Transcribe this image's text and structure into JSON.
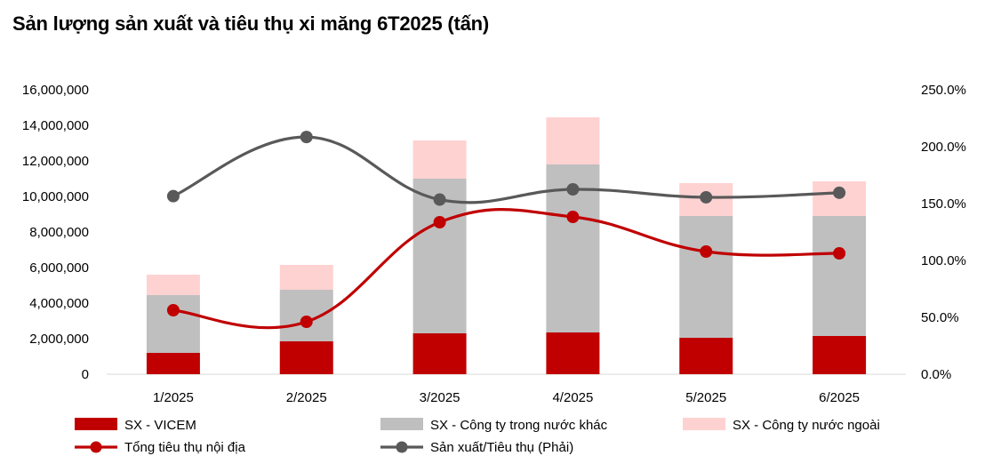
{
  "title": "Sản lượng sản xuất và tiêu thụ xi măng 6T2025 (tấn)",
  "chart_data": {
    "type": "bar",
    "title": "Sản lượng sản xuất và tiêu thụ xi măng 6T2025 (tấn)",
    "categories": [
      "1/2025",
      "2/2025",
      "3/2025",
      "4/2025",
      "5/2025",
      "6/2025"
    ],
    "y_left": {
      "range": [
        0,
        16000000
      ],
      "ticks": [
        "0",
        "2,000,000",
        "4,000,000",
        "6,000,000",
        "8,000,000",
        "10,000,000",
        "12,000,000",
        "14,000,000",
        "16,000,000"
      ]
    },
    "y_right": {
      "range": [
        0,
        250
      ],
      "ticks": [
        "0.0%",
        "50.0%",
        "100.0%",
        "150.0%",
        "200.0%",
        "250.0%"
      ]
    },
    "stacked_bars": [
      {
        "name": "SX - VICEM",
        "color": "#c00000",
        "values": [
          1200000,
          1850000,
          2300000,
          2350000,
          2050000,
          2150000
        ]
      },
      {
        "name": "SX - Công ty trong nước khác",
        "color": "#bfbfbf",
        "values": [
          3250000,
          2900000,
          8700000,
          9450000,
          6850000,
          6750000
        ]
      },
      {
        "name": "SX - Công ty nước ngoài",
        "color": "#ffd2d2",
        "values": [
          1150000,
          1400000,
          2150000,
          2650000,
          1850000,
          1950000
        ]
      }
    ],
    "lines": [
      {
        "name": "Tổng tiêu thụ nội địa",
        "color": "#c00000",
        "axis": "left",
        "values": [
          3600000,
          2950000,
          8550000,
          8850000,
          6900000,
          6800000
        ]
      },
      {
        "name": "Sản xuất/Tiêu thụ (Phải)",
        "color": "#595959",
        "axis": "right",
        "values": [
          156.5,
          208.5,
          153.5,
          162.5,
          155.5,
          159.5
        ]
      }
    ],
    "legend_position": "bottom"
  }
}
